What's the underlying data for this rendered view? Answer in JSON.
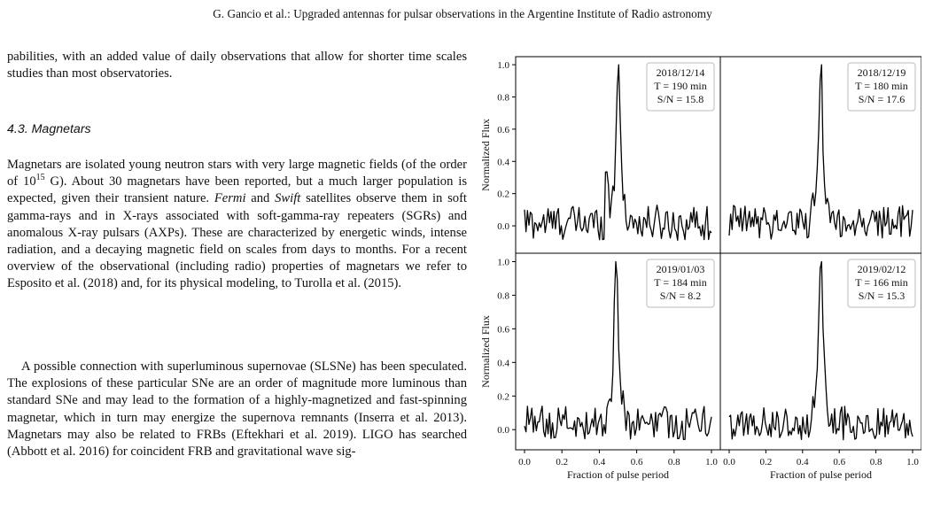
{
  "header": {
    "running_head": "G. Gancio et al.: Upgraded antennas for pulsar observations in the Argentine Institute of Radio astronomy"
  },
  "body": {
    "intro_text": "pabilities, with an added value of daily observations that allow for shorter time scales studies than most observatories.",
    "section_heading": "4.3. Magnetars",
    "p1_a": "Magnetars are isolated young neutron stars with very large magnetic fields (of the order of 10",
    "p1_exp": "15",
    "p1_b": " G). About 30 magnetars have been reported, but a much larger population is expected, given their transient nature. ",
    "p1_fermi": "Fermi",
    "p1_and": " and ",
    "p1_swift": "Swift",
    "p1_c": " satellites observe them in soft gamma-rays and in X-rays associated with soft-gamma-ray repeaters (SGRs) and anomalous X-ray pulsars (AXPs). These are characterized by energetic winds, intense radiation, and a decaying magnetic field on scales from days to months. For a recent overview of the observational (including radio) properties of magnetars we refer to Esposito et al. (2018) and, for its physical modeling, to Turolla et al. (2015).",
    "p2": "A possible connection with superluminous supernovae (SLSNe) has been speculated. The explosions of these particular SNe are an order of magnitude more luminous than standard SNe and may lead to the formation of a highly-magnetized and fast-spinning magnetar, which in turn may energize the supernova remnants (Inserra et al. 2013). Magnetars may also be related to FRBs (Eftekhari et al. 2019). LIGO has searched (Abbott et al. 2016) for coincident FRB and gravitational wave sig-"
  },
  "chart_data": [
    {
      "type": "line",
      "date": "2018/12/14",
      "tau": "T = 190 min",
      "sn": "S/N = 15.8",
      "peak_x": 0.5,
      "xlabel": "",
      "ylabel": "Normalized Flux",
      "xlim": [
        0,
        1
      ],
      "ylim": [
        -0.17,
        1.05
      ]
    },
    {
      "type": "line",
      "date": "2018/12/19",
      "tau": "T = 180 min",
      "sn": "S/N = 17.6",
      "peak_x": 0.5,
      "xlabel": "",
      "ylabel": "",
      "xlim": [
        0,
        1
      ],
      "ylim": [
        -0.17,
        1.05
      ]
    },
    {
      "type": "line",
      "date": "2019/01/03",
      "tau": "T = 184 min",
      "sn": "S/N = 8.2",
      "peak_x": 0.49,
      "xlabel": "Fraction of pulse period",
      "ylabel": "Normalized Flux",
      "xlim": [
        0,
        1
      ],
      "ylim": [
        -0.12,
        1.05
      ]
    },
    {
      "type": "line",
      "date": "2019/02/12",
      "tau": "T = 166 min",
      "sn": "S/N = 15.3",
      "peak_x": 0.5,
      "xlabel": "Fraction of pulse period",
      "ylabel": "",
      "xlim": [
        0,
        1
      ],
      "ylim": [
        -0.12,
        1.05
      ]
    }
  ],
  "axes": {
    "yticks_top": [
      "1.0",
      "0.8",
      "0.6",
      "0.4",
      "0.2",
      "0.0"
    ],
    "yticks_bottom": [
      "1.0",
      "0.8",
      "0.6",
      "0.4",
      "0.2",
      "0.0"
    ],
    "xticks_left": [
      "0.0",
      "0.2",
      "0.4",
      "0.6",
      "0.8",
      "1.0"
    ],
    "xticks_right": [
      "0.0",
      "0.2",
      "0.4",
      "0.6",
      "0.8",
      "1.0"
    ]
  }
}
